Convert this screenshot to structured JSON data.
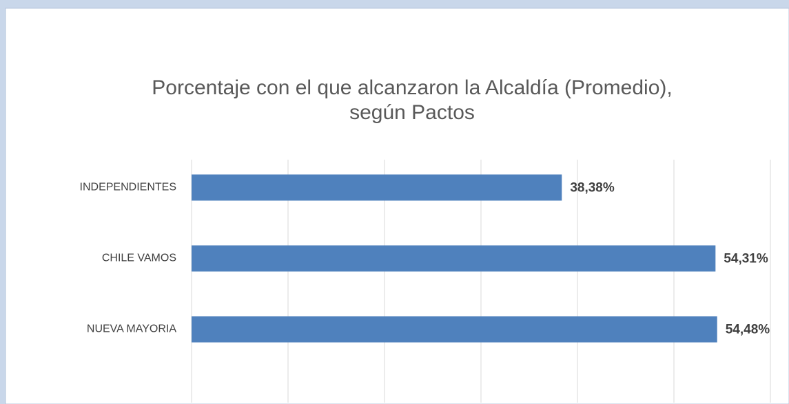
{
  "chart_data": {
    "type": "bar",
    "orientation": "horizontal",
    "title": [
      "Porcentaje con el que alcanzaron la Alcaldía (Promedio),",
      "según Pactos"
    ],
    "categories": [
      "INDEPENDIENTES",
      "CHILE VAMOS",
      "NUEVA MAYORIA"
    ],
    "values": [
      38.38,
      54.31,
      54.48
    ],
    "value_labels": [
      "38,38%",
      "54,31%",
      "54,48%"
    ],
    "color": "#4f81bd",
    "xlim": [
      0,
      60
    ],
    "xticks": [
      0,
      10,
      20,
      30,
      40,
      50,
      60
    ],
    "grid": true
  }
}
